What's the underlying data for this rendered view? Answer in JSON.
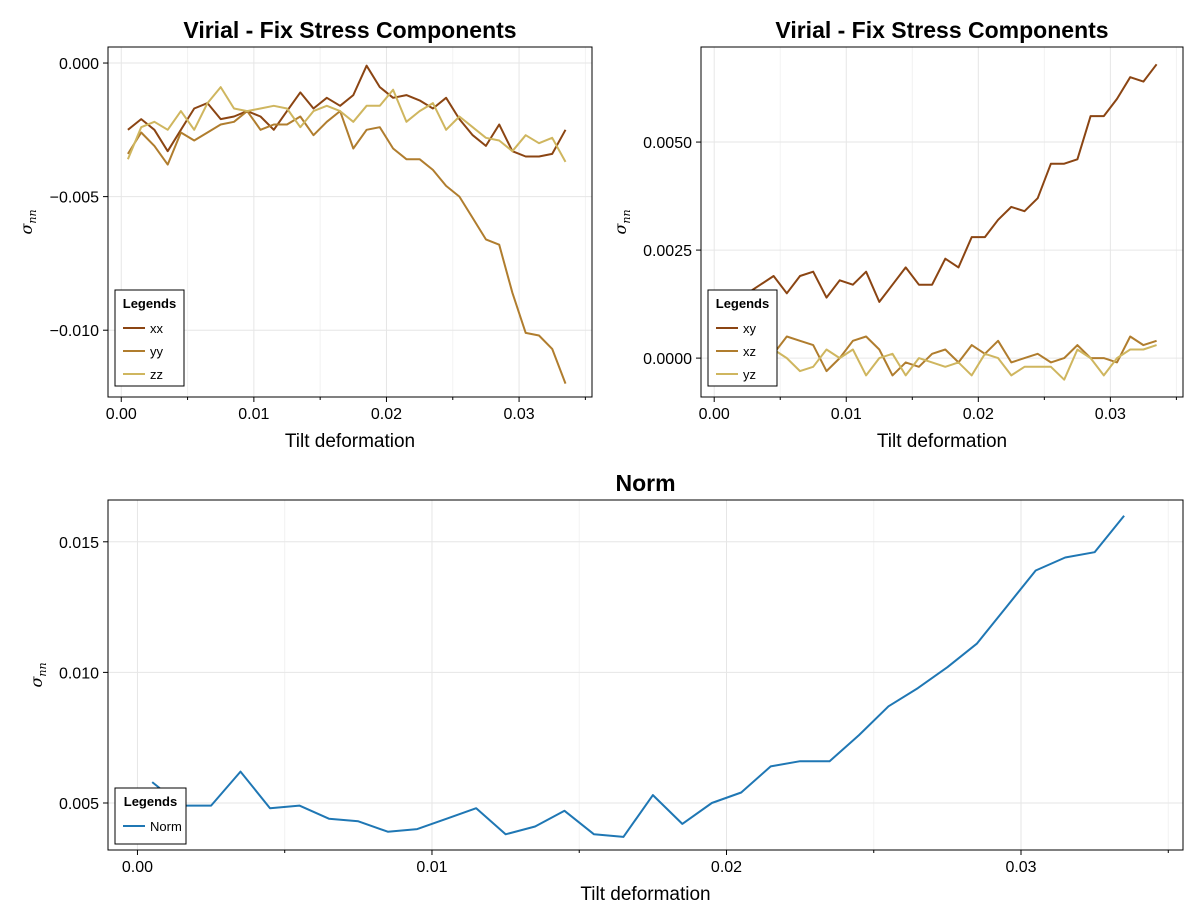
{
  "chart_data": [
    {
      "type": "line",
      "title": "Virial - Fix Stress Components",
      "xlabel": "Tilt deformation",
      "ylabel": "σ_nn",
      "xlim": [
        -0.001,
        0.0355
      ],
      "ylim": [
        -0.0125,
        0.0006
      ],
      "xticks": [
        0.0,
        0.01,
        0.02,
        0.03
      ],
      "xtick_labels": [
        "0.00",
        "0.01",
        "0.02",
        "0.03"
      ],
      "yticks": [
        0.0,
        -0.005,
        -0.01
      ],
      "ytick_labels": [
        "0.000",
        "−0.005",
        "−0.010"
      ],
      "grid": true,
      "legend": {
        "title": "Legends",
        "position": "bottom-left"
      },
      "x": [
        0.0005,
        0.0015,
        0.0025,
        0.0035,
        0.0045,
        0.0055,
        0.0065,
        0.0075,
        0.0085,
        0.0095,
        0.0105,
        0.0115,
        0.0125,
        0.0135,
        0.0145,
        0.0155,
        0.0165,
        0.0175,
        0.0185,
        0.0195,
        0.0205,
        0.0215,
        0.0225,
        0.0235,
        0.0245,
        0.0255,
        0.0265,
        0.0275,
        0.0285,
        0.0295,
        0.0305,
        0.0315,
        0.0325,
        0.0335
      ],
      "series": [
        {
          "name": "xx",
          "color": "#8b4513",
          "values": [
            -0.0025,
            -0.0021,
            -0.0025,
            -0.0033,
            -0.0025,
            -0.0017,
            -0.0015,
            -0.0021,
            -0.002,
            -0.0018,
            -0.002,
            -0.0025,
            -0.0018,
            -0.0011,
            -0.0017,
            -0.0013,
            -0.0016,
            -0.0012,
            -0.0001,
            -0.0009,
            -0.0013,
            -0.0012,
            -0.0014,
            -0.0017,
            -0.0013,
            -0.0021,
            -0.0027,
            -0.0031,
            -0.0023,
            -0.0033,
            -0.0035,
            -0.0035,
            -0.0034,
            -0.0025
          ]
        },
        {
          "name": "yy",
          "color": "#b07d2e",
          "values": [
            -0.0034,
            -0.0026,
            -0.0031,
            -0.0038,
            -0.0026,
            -0.0029,
            -0.0026,
            -0.0023,
            -0.0022,
            -0.0018,
            -0.0025,
            -0.0023,
            -0.0023,
            -0.002,
            -0.0027,
            -0.0022,
            -0.0018,
            -0.0032,
            -0.0025,
            -0.0024,
            -0.0032,
            -0.0036,
            -0.0036,
            -0.004,
            -0.0046,
            -0.005,
            -0.0058,
            -0.0066,
            -0.0068,
            -0.0086,
            -0.0101,
            -0.0102,
            -0.0107,
            -0.012
          ]
        },
        {
          "name": "zz",
          "color": "#cfb65f",
          "values": [
            -0.0036,
            -0.0024,
            -0.0022,
            -0.0025,
            -0.0018,
            -0.0025,
            -0.0015,
            -0.0009,
            -0.0017,
            -0.0018,
            -0.0017,
            -0.0016,
            -0.0017,
            -0.0024,
            -0.0018,
            -0.0016,
            -0.0018,
            -0.0022,
            -0.0016,
            -0.0016,
            -0.001,
            -0.0022,
            -0.0018,
            -0.0015,
            -0.0025,
            -0.002,
            -0.0024,
            -0.0028,
            -0.0029,
            -0.0033,
            -0.0027,
            -0.003,
            -0.0028,
            -0.0037
          ]
        }
      ]
    },
    {
      "type": "line",
      "title": "Virial - Fix Stress Components",
      "xlabel": "Tilt deformation",
      "ylabel": "σ_nn",
      "xlim": [
        -0.001,
        0.0355
      ],
      "ylim": [
        -0.0009,
        0.0072
      ],
      "xticks": [
        0.0,
        0.01,
        0.02,
        0.03
      ],
      "xtick_labels": [
        "0.00",
        "0.01",
        "0.02",
        "0.03"
      ],
      "yticks": [
        0.0,
        0.0025,
        0.005
      ],
      "ytick_labels": [
        "0.0000",
        "0.0025",
        "0.0050"
      ],
      "grid": true,
      "legend": {
        "title": "Legends",
        "position": "bottom-left"
      },
      "x": [
        0.0005,
        0.0015,
        0.0025,
        0.0035,
        0.0045,
        0.0055,
        0.0065,
        0.0075,
        0.0085,
        0.0095,
        0.0105,
        0.0115,
        0.0125,
        0.0135,
        0.0145,
        0.0155,
        0.0165,
        0.0175,
        0.0185,
        0.0195,
        0.0205,
        0.0215,
        0.0225,
        0.0235,
        0.0245,
        0.0255,
        0.0265,
        0.0275,
        0.0285,
        0.0295,
        0.0305,
        0.0315,
        0.0325,
        0.0335
      ],
      "series": [
        {
          "name": "xy",
          "color": "#8b4513",
          "values": [
            0.0013,
            0.0014,
            0.0015,
            0.0017,
            0.0019,
            0.0015,
            0.0019,
            0.002,
            0.0014,
            0.0018,
            0.0017,
            0.002,
            0.0013,
            0.0017,
            0.0021,
            0.0017,
            0.0017,
            0.0023,
            0.0021,
            0.0028,
            0.0028,
            0.0032,
            0.0035,
            0.0034,
            0.0037,
            0.0045,
            0.0045,
            0.0046,
            0.0056,
            0.0056,
            0.006,
            0.0065,
            0.0064,
            0.0068
          ]
        },
        {
          "name": "xz",
          "color": "#b07d2e",
          "values": [
            0.0001,
            0.0002,
            0.0001,
            0.0002,
            0.0001,
            0.0005,
            0.0004,
            0.0003,
            -0.0003,
            0.0,
            0.0004,
            0.0005,
            0.0002,
            -0.0004,
            -0.0001,
            -0.0002,
            0.0001,
            0.0002,
            -0.0001,
            0.0003,
            0.0001,
            0.0004,
            -0.0001,
            0.0,
            0.0001,
            -0.0001,
            0.0,
            0.0003,
            0.0,
            0.0,
            -0.0001,
            0.0005,
            0.0003,
            0.0004
          ]
        },
        {
          "name": "yz",
          "color": "#cfb65f",
          "values": [
            0.0,
            0.0001,
            0.0002,
            0.0001,
            0.0002,
            0.0,
            -0.0003,
            -0.0002,
            0.0002,
            0.0,
            0.0002,
            -0.0004,
            0.0,
            0.0001,
            -0.0004,
            0.0,
            -0.0001,
            -0.0002,
            -0.0001,
            -0.0004,
            0.0001,
            0.0,
            -0.0004,
            -0.0002,
            -0.0002,
            -0.0002,
            -0.0005,
            0.0002,
            0.0,
            -0.0004,
            0.0,
            0.0002,
            0.0002,
            0.0003
          ]
        }
      ]
    },
    {
      "type": "line",
      "title": "Norm",
      "xlabel": "Tilt deformation",
      "ylabel": "σ_nn",
      "xlim": [
        -0.001,
        0.0355
      ],
      "ylim": [
        0.0032,
        0.0166
      ],
      "xticks": [
        0.0,
        0.01,
        0.02,
        0.03
      ],
      "xtick_labels": [
        "0.00",
        "0.01",
        "0.02",
        "0.03"
      ],
      "yticks": [
        0.005,
        0.01,
        0.015
      ],
      "ytick_labels": [
        "0.005",
        "0.010",
        "0.015"
      ],
      "grid": true,
      "legend": {
        "title": "Legends",
        "position": "bottom-left"
      },
      "x": [
        0.0005,
        0.0015,
        0.0025,
        0.0035,
        0.0045,
        0.0055,
        0.0065,
        0.0075,
        0.0085,
        0.0095,
        0.0105,
        0.0115,
        0.0125,
        0.0135,
        0.0145,
        0.0155,
        0.0165,
        0.0175,
        0.0185,
        0.0195,
        0.0205,
        0.0215,
        0.0225,
        0.0235,
        0.0245,
        0.0255,
        0.0265,
        0.0275,
        0.0285,
        0.0295,
        0.0305,
        0.0315,
        0.0325,
        0.0335
      ],
      "series": [
        {
          "name": "Norm",
          "color": "#1f77b4",
          "values": [
            0.0058,
            0.0049,
            0.0049,
            0.0062,
            0.0048,
            0.0049,
            0.0044,
            0.0043,
            0.0039,
            0.004,
            0.0044,
            0.0048,
            0.0038,
            0.0041,
            0.0047,
            0.0038,
            0.0037,
            0.0053,
            0.0042,
            0.005,
            0.0054,
            0.0064,
            0.0066,
            0.0066,
            0.0076,
            0.0087,
            0.0094,
            0.0102,
            0.0111,
            0.0125,
            0.0139,
            0.0144,
            0.0146,
            0.016
          ]
        }
      ]
    }
  ]
}
